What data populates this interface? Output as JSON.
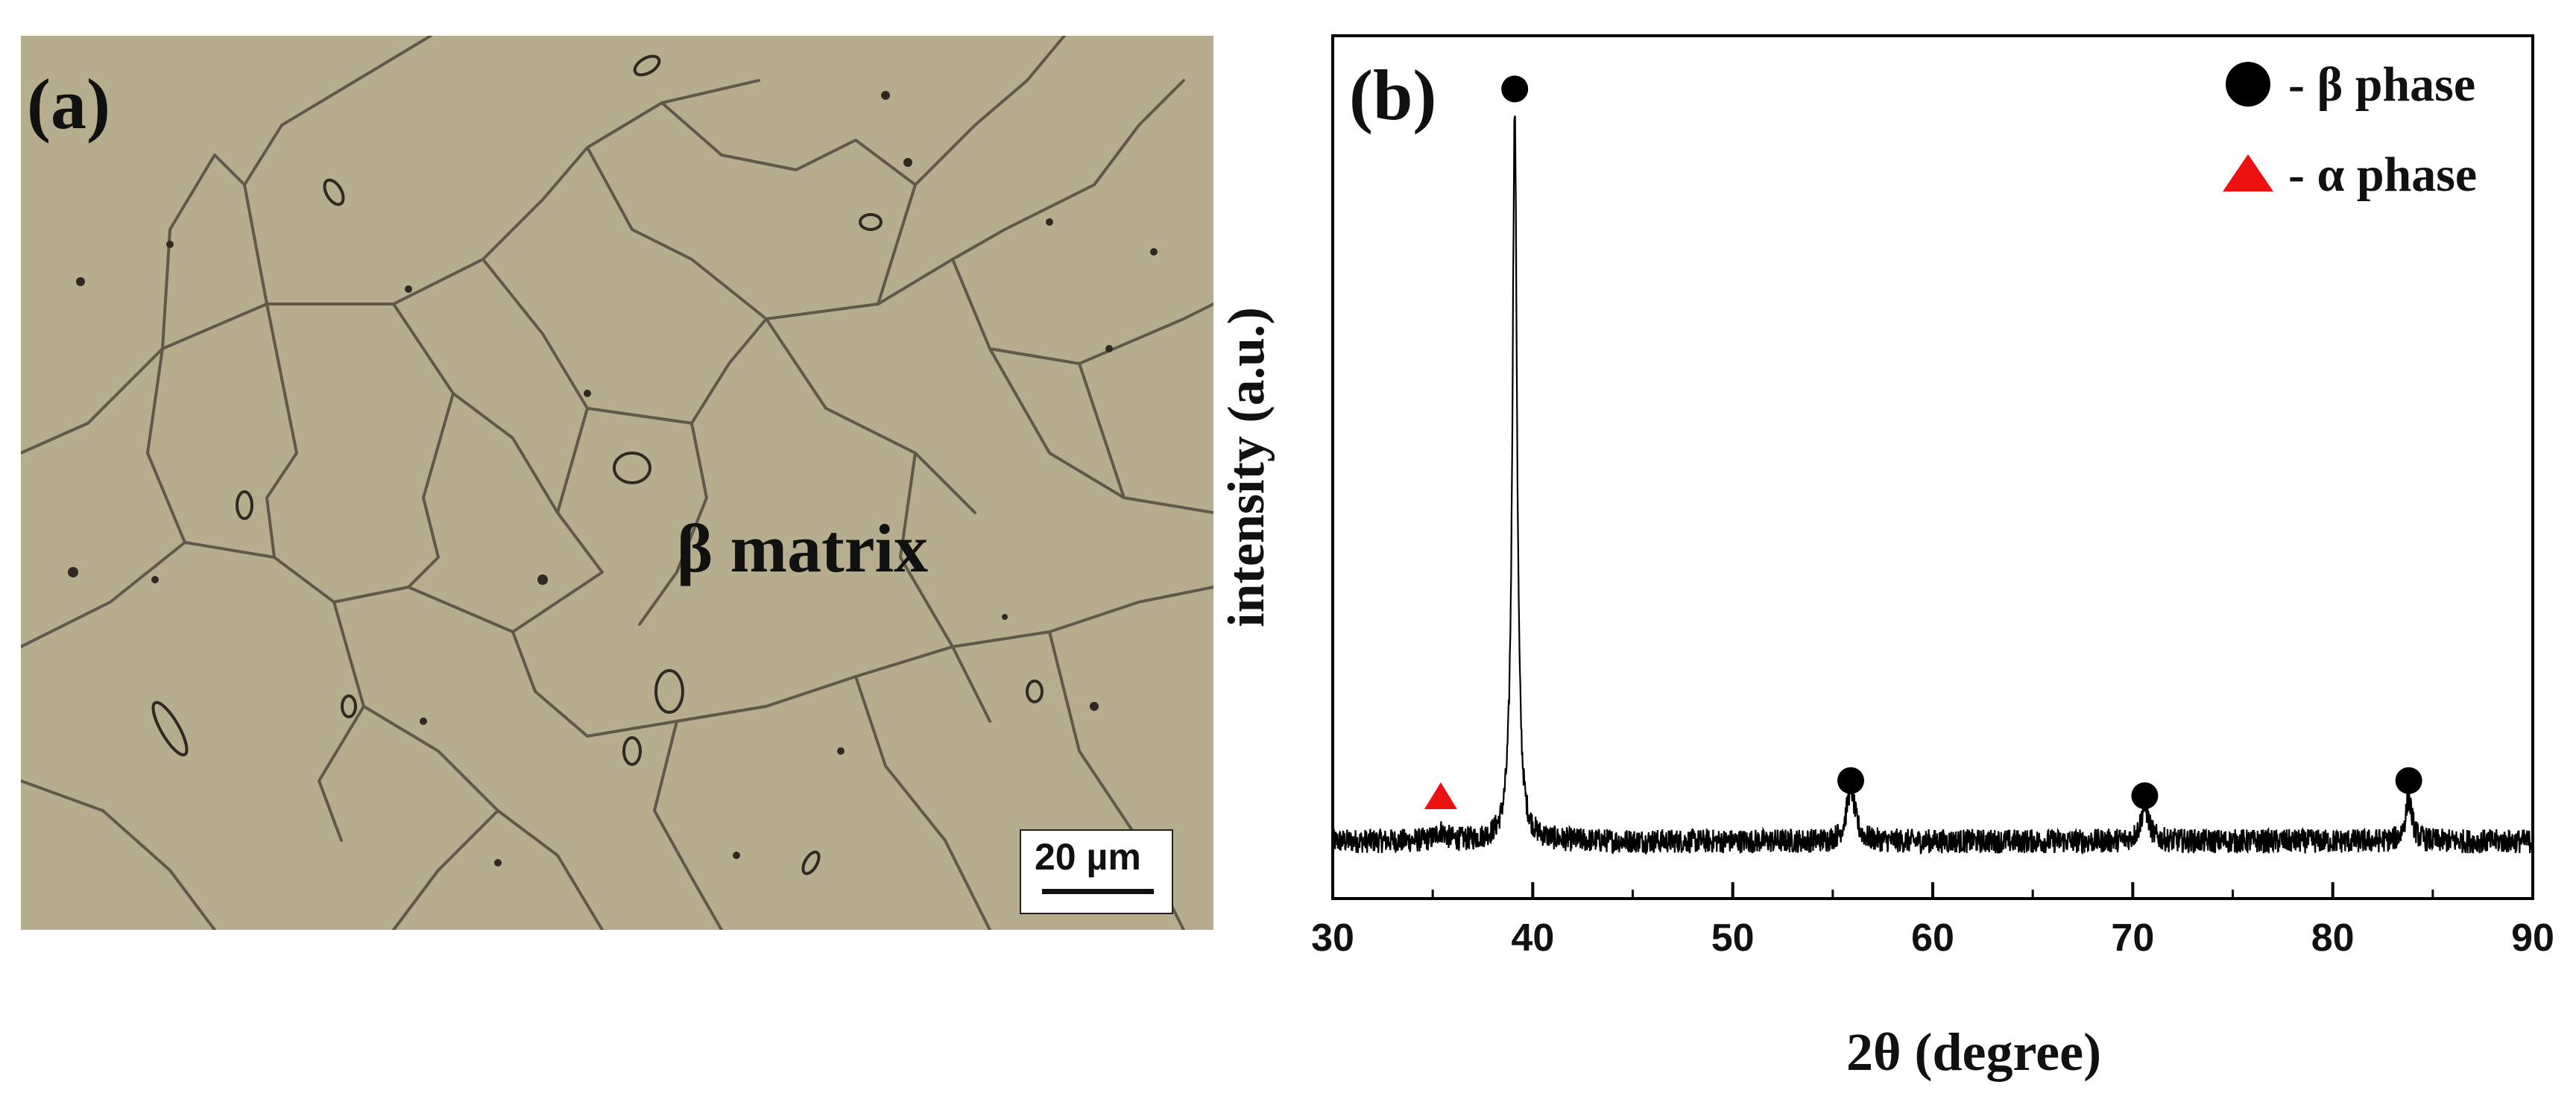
{
  "panel_a": {
    "label": "(a)",
    "matrix_label": "β matrix",
    "scale_bar": "20 µm",
    "image_description_icon": "micrograph-image"
  },
  "chart_data": {
    "type": "line",
    "panel_label": "(b)",
    "title": "",
    "xlabel": "2θ (degree)",
    "ylabel": "intensity (a.u.)",
    "xlim": [
      30,
      90
    ],
    "ylim": [
      0,
      100
    ],
    "xticks": [
      30,
      40,
      50,
      60,
      70,
      80,
      90
    ],
    "y_ticks_shown": false,
    "grid": false,
    "legend": {
      "position": "top-right",
      "entries": [
        {
          "marker": "circle",
          "label": "- β phase",
          "color": "#000000"
        },
        {
          "marker": "triangle",
          "label": "- α phase",
          "color": "#ee1111"
        }
      ]
    },
    "baseline": 4,
    "noise_amplitude": 1.6,
    "peaks": [
      {
        "x": 39.1,
        "height": 96,
        "width": 0.14,
        "phase": "β"
      },
      {
        "x": 55.9,
        "height": 7,
        "width": 0.25,
        "phase": "β"
      },
      {
        "x": 70.6,
        "height": 4.5,
        "width": 0.25,
        "phase": "β"
      },
      {
        "x": 83.8,
        "height": 5.5,
        "width": 0.2,
        "phase": "β"
      },
      {
        "x": 35.4,
        "height": 1.2,
        "width": 0.3,
        "phase": "α"
      }
    ],
    "markers": [
      {
        "x": 39.1,
        "y": 103,
        "symbol": "circle",
        "phase": "β"
      },
      {
        "x": 55.9,
        "y": 12,
        "symbol": "circle",
        "phase": "β"
      },
      {
        "x": 70.6,
        "y": 10,
        "symbol": "circle",
        "phase": "β"
      },
      {
        "x": 83.8,
        "y": 12,
        "symbol": "circle",
        "phase": "β"
      },
      {
        "x": 35.4,
        "y": 10,
        "symbol": "triangle",
        "phase": "α"
      }
    ],
    "colors": {
      "line": "#000000",
      "beta": "#000000",
      "alpha": "#ee1111"
    }
  }
}
